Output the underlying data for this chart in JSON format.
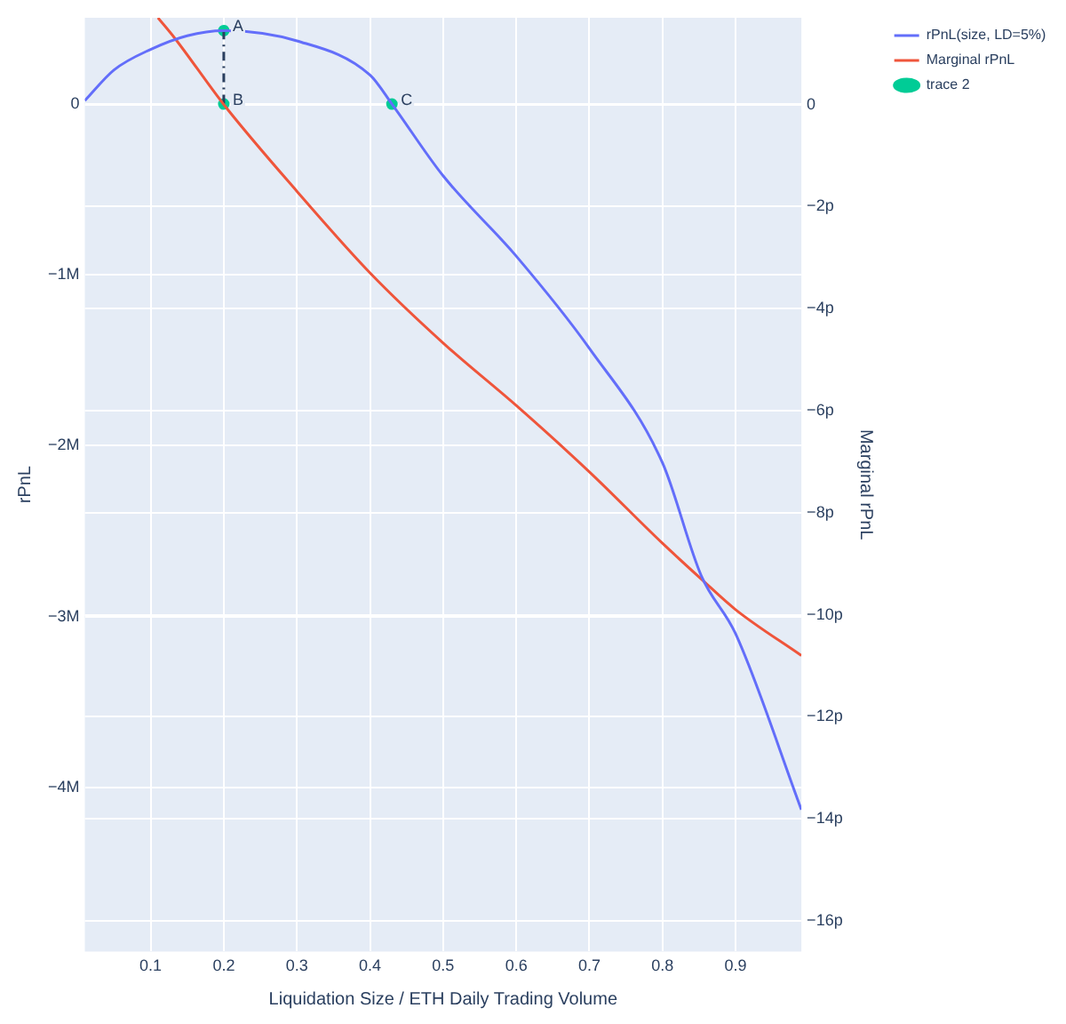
{
  "chart_data": {
    "type": "line",
    "xlabel": "Liquidation Size / ETH Daily Trading Volume",
    "ylabel": "rPnL",
    "y2label": "Marginal rPnL",
    "xlim": [
      0.01,
      0.99
    ],
    "xticks": [
      0.1,
      0.2,
      0.3,
      0.4,
      0.5,
      0.6,
      0.7,
      0.8,
      0.9
    ],
    "ylim": [
      -4960000,
      505000
    ],
    "yticks": [
      {
        "value": -4000000,
        "label": "−4M"
      },
      {
        "value": -3000000,
        "label": "−3M"
      },
      {
        "value": -2000000,
        "label": "−2M"
      },
      {
        "value": -1000000,
        "label": "−1M"
      },
      0
    ],
    "y2lim": [
      -16.6,
      1.7
    ],
    "y2ticks": [
      {
        "value": -16,
        "label": "−16p"
      },
      {
        "value": -14,
        "label": "−14p"
      },
      {
        "value": -12,
        "label": "−12p"
      },
      {
        "value": -10,
        "label": "−10p"
      },
      {
        "value": -8,
        "label": "−8p"
      },
      {
        "value": -6,
        "label": "−6p"
      },
      {
        "value": -4,
        "label": "−4p"
      },
      {
        "value": -2,
        "label": "−2p"
      },
      0
    ],
    "grid": true,
    "legend": "top right",
    "series": [
      {
        "name": "rPnL(size, LD=5%)",
        "type": "line",
        "color": "#636efa",
        "marker": "none",
        "x": [
          0.01,
          0.05,
          0.1,
          0.15,
          0.2,
          0.3,
          0.4,
          0.43,
          0.5,
          0.6,
          0.7,
          0.8,
          0.853,
          0.9,
          0.99
        ],
        "values": [
          20000,
          200000,
          320000,
          400000,
          430000,
          370000,
          170000,
          0,
          -420000,
          -890000,
          -1430000,
          -2100000,
          -2760000,
          -3100000,
          -4130000
        ]
      },
      {
        "name": "Marginal rPnL",
        "type": "line",
        "axis": "y2",
        "color": "#ef553b",
        "marker": "none",
        "x": [
          0.11,
          0.133,
          0.2,
          0.3,
          0.4,
          0.502,
          0.6,
          0.7,
          0.8,
          0.853,
          0.9,
          0.99
        ],
        "values": [
          1.7,
          1.3,
          0,
          -1.7,
          -3.3,
          -4.7,
          -5.9,
          -7.2,
          -8.6,
          -9.3,
          -9.9,
          -10.8
        ]
      },
      {
        "type": "line",
        "color": "#2a3f5f",
        "marker": "none",
        "line_style": "dashed",
        "x": [
          0.2,
          0.2
        ],
        "values": [
          430000,
          0
        ]
      },
      {
        "name": "trace 2",
        "type": "scatter",
        "color": "#00cc96",
        "marker": "circle",
        "x": [
          0.2,
          0.2,
          0.43
        ],
        "values": [
          430000,
          0,
          0
        ],
        "value_labels": [
          "A",
          "B",
          "C"
        ]
      }
    ]
  }
}
